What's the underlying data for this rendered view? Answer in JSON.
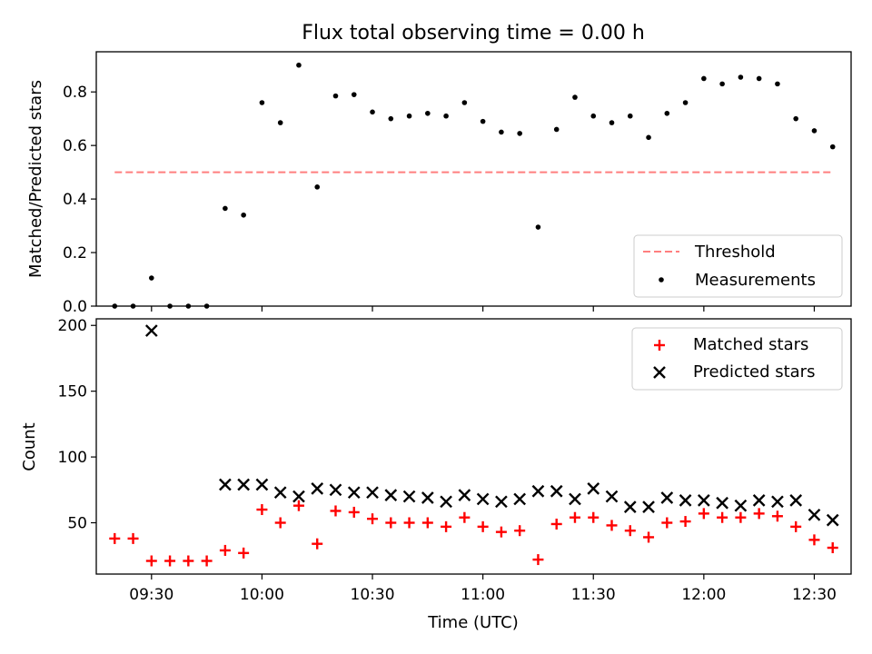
{
  "chart_data": [
    {
      "type": "scatter",
      "title": "Flux total observing time = 0.00 h",
      "xlabel": "",
      "ylabel": "Matched/Predicted stars",
      "ylim": [
        0,
        0.95
      ],
      "yticks": [
        "0.0",
        "0.2",
        "0.4",
        "0.6",
        "0.8"
      ],
      "legend_position": "bottom-right",
      "threshold": {
        "name": "Threshold",
        "value": 0.5,
        "x_start": "09:20",
        "x_end": "12:35",
        "color": "#ff7f7f"
      },
      "series": [
        {
          "name": "Measurements",
          "color": "#000000",
          "x": [
            "09:20",
            "09:25",
            "09:30",
            "09:35",
            "09:40",
            "09:45",
            "09:50",
            "09:55",
            "10:00",
            "10:05",
            "10:10",
            "10:15",
            "10:20",
            "10:25",
            "10:30",
            "10:35",
            "10:40",
            "10:45",
            "10:50",
            "10:55",
            "11:00",
            "11:05",
            "11:10",
            "11:15",
            "11:20",
            "11:25",
            "11:30",
            "11:35",
            "11:40",
            "11:45",
            "11:50",
            "11:55",
            "12:00",
            "12:05",
            "12:10",
            "12:15",
            "12:20",
            "12:25",
            "12:30",
            "12:35"
          ],
          "y": [
            0.0,
            0.0,
            0.105,
            0.0,
            0.0,
            0.0,
            0.365,
            0.34,
            0.76,
            0.685,
            0.9,
            0.445,
            0.785,
            0.79,
            0.725,
            0.7,
            0.71,
            0.72,
            0.71,
            0.76,
            0.69,
            0.65,
            0.645,
            0.295,
            0.66,
            0.78,
            0.71,
            0.685,
            0.71,
            0.63,
            0.72,
            0.76,
            0.85,
            0.83,
            0.855,
            0.85,
            0.83,
            0.7,
            0.655,
            0.595
          ]
        }
      ]
    },
    {
      "type": "scatter",
      "title": "",
      "xlabel": "Time (UTC)",
      "ylabel": "Count",
      "ylim": [
        11,
        205
      ],
      "yticks": [
        "50",
        "100",
        "150",
        "200"
      ],
      "xticks": [
        "09:30",
        "10:00",
        "10:30",
        "11:00",
        "11:30",
        "12:00",
        "12:30"
      ],
      "legend_position": "top-right",
      "series": [
        {
          "name": "Matched stars",
          "marker": "plus",
          "color": "#ff0000",
          "x": [
            "09:20",
            "09:25",
            "09:30",
            "09:35",
            "09:40",
            "09:45",
            "09:50",
            "09:55",
            "10:00",
            "10:05",
            "10:10",
            "10:15",
            "10:20",
            "10:25",
            "10:30",
            "10:35",
            "10:40",
            "10:45",
            "10:50",
            "10:55",
            "11:00",
            "11:05",
            "11:10",
            "11:15",
            "11:20",
            "11:25",
            "11:30",
            "11:35",
            "11:40",
            "11:45",
            "11:50",
            "11:55",
            "12:00",
            "12:05",
            "12:10",
            "12:15",
            "12:20",
            "12:25",
            "12:30",
            "12:35"
          ],
          "y": [
            38,
            38,
            21,
            21,
            21,
            21,
            29,
            27,
            60,
            50,
            63,
            34,
            59,
            58,
            53,
            50,
            50,
            50,
            47,
            54,
            47,
            43,
            44,
            22,
            49,
            54,
            54,
            48,
            44,
            39,
            50,
            51,
            57,
            54,
            54,
            57,
            55,
            47,
            37,
            31
          ]
        },
        {
          "name": "Predicted stars",
          "marker": "x",
          "color": "#000000",
          "x": [
            "09:30",
            "09:50",
            "09:55",
            "10:00",
            "10:05",
            "10:10",
            "10:15",
            "10:20",
            "10:25",
            "10:30",
            "10:35",
            "10:40",
            "10:45",
            "10:50",
            "10:55",
            "11:00",
            "11:05",
            "11:10",
            "11:15",
            "11:20",
            "11:25",
            "11:30",
            "11:35",
            "11:40",
            "11:45",
            "11:50",
            "11:55",
            "12:00",
            "12:05",
            "12:10",
            "12:15",
            "12:20",
            "12:25",
            "12:30",
            "12:35"
          ],
          "y": [
            196,
            79,
            79,
            79,
            73,
            70,
            76,
            75,
            73,
            73,
            71,
            70,
            69,
            66,
            71,
            68,
            66,
            68,
            74,
            74,
            68,
            76,
            70,
            62,
            62,
            69,
            67,
            67,
            65,
            63,
            67,
            66,
            67,
            56,
            52
          ]
        }
      ]
    }
  ]
}
